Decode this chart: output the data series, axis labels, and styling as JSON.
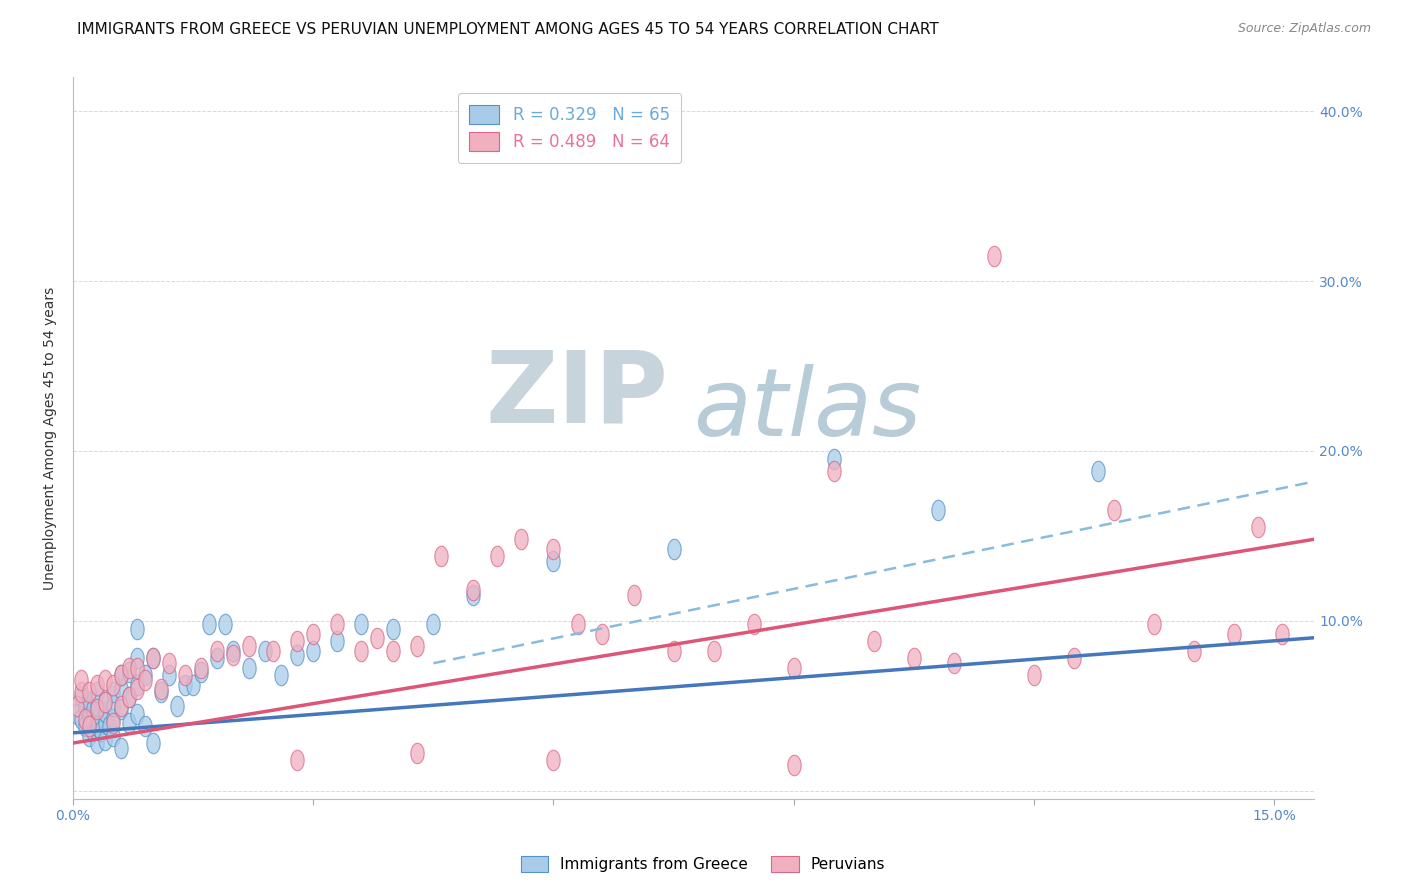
{
  "title": "IMMIGRANTS FROM GREECE VS PERUVIAN UNEMPLOYMENT AMONG AGES 45 TO 54 YEARS CORRELATION CHART",
  "source": "Source: ZipAtlas.com",
  "ylabel": "Unemployment Among Ages 45 to 54 years",
  "xlim": [
    0.0,
    0.155
  ],
  "ylim": [
    -0.005,
    0.42
  ],
  "xticks": [
    0.0,
    0.03,
    0.06,
    0.09,
    0.12,
    0.15
  ],
  "yticks": [
    0.0,
    0.1,
    0.2,
    0.3,
    0.4
  ],
  "right_ytick_labels": [
    "",
    "10.0%",
    "20.0%",
    "30.0%",
    "40.0%"
  ],
  "legend_entries": [
    {
      "label": "R = 0.329   N = 65",
      "color": "#6aabdb"
    },
    {
      "label": "R = 0.489   N = 64",
      "color": "#e8739a"
    }
  ],
  "blue_scatter_x": [
    0.0005,
    0.001,
    0.001,
    0.0015,
    0.0015,
    0.002,
    0.002,
    0.002,
    0.0025,
    0.0025,
    0.003,
    0.003,
    0.003,
    0.003,
    0.003,
    0.0035,
    0.004,
    0.004,
    0.004,
    0.004,
    0.0045,
    0.005,
    0.005,
    0.005,
    0.005,
    0.006,
    0.006,
    0.006,
    0.006,
    0.007,
    0.007,
    0.007,
    0.008,
    0.008,
    0.008,
    0.008,
    0.009,
    0.009,
    0.01,
    0.01,
    0.011,
    0.012,
    0.013,
    0.014,
    0.015,
    0.016,
    0.017,
    0.018,
    0.019,
    0.02,
    0.022,
    0.024,
    0.026,
    0.028,
    0.03,
    0.033,
    0.036,
    0.04,
    0.045,
    0.05,
    0.06,
    0.075,
    0.095,
    0.108,
    0.128
  ],
  "blue_scatter_y": [
    0.045,
    0.042,
    0.055,
    0.038,
    0.05,
    0.032,
    0.044,
    0.052,
    0.035,
    0.048,
    0.028,
    0.038,
    0.042,
    0.05,
    0.058,
    0.035,
    0.03,
    0.04,
    0.046,
    0.052,
    0.038,
    0.032,
    0.042,
    0.05,
    0.058,
    0.025,
    0.048,
    0.06,
    0.068,
    0.04,
    0.055,
    0.07,
    0.045,
    0.062,
    0.078,
    0.095,
    0.038,
    0.068,
    0.028,
    0.078,
    0.058,
    0.068,
    0.05,
    0.062,
    0.062,
    0.07,
    0.098,
    0.078,
    0.098,
    0.082,
    0.072,
    0.082,
    0.068,
    0.08,
    0.082,
    0.088,
    0.098,
    0.095,
    0.098,
    0.115,
    0.135,
    0.142,
    0.195,
    0.165,
    0.188
  ],
  "pink_scatter_x": [
    0.0005,
    0.001,
    0.001,
    0.0015,
    0.002,
    0.002,
    0.003,
    0.003,
    0.004,
    0.004,
    0.005,
    0.005,
    0.006,
    0.006,
    0.007,
    0.007,
    0.008,
    0.008,
    0.009,
    0.01,
    0.011,
    0.012,
    0.014,
    0.016,
    0.018,
    0.02,
    0.022,
    0.025,
    0.028,
    0.03,
    0.033,
    0.036,
    0.038,
    0.04,
    0.043,
    0.046,
    0.05,
    0.053,
    0.056,
    0.06,
    0.063,
    0.066,
    0.07,
    0.075,
    0.08,
    0.085,
    0.09,
    0.095,
    0.1,
    0.105,
    0.11,
    0.115,
    0.12,
    0.125,
    0.13,
    0.135,
    0.14,
    0.145,
    0.148,
    0.151,
    0.028,
    0.043,
    0.06,
    0.09
  ],
  "pink_scatter_y": [
    0.05,
    0.058,
    0.065,
    0.042,
    0.038,
    0.058,
    0.048,
    0.062,
    0.052,
    0.065,
    0.04,
    0.062,
    0.05,
    0.068,
    0.055,
    0.072,
    0.06,
    0.072,
    0.065,
    0.078,
    0.06,
    0.075,
    0.068,
    0.072,
    0.082,
    0.08,
    0.085,
    0.082,
    0.088,
    0.092,
    0.098,
    0.082,
    0.09,
    0.082,
    0.085,
    0.138,
    0.118,
    0.138,
    0.148,
    0.142,
    0.098,
    0.092,
    0.115,
    0.082,
    0.082,
    0.098,
    0.072,
    0.188,
    0.088,
    0.078,
    0.075,
    0.315,
    0.068,
    0.078,
    0.165,
    0.098,
    0.082,
    0.092,
    0.155,
    0.092,
    0.018,
    0.022,
    0.018,
    0.015
  ],
  "blue_line": [
    [
      0.0,
      0.155
    ],
    [
      0.034,
      0.09
    ]
  ],
  "blue_dash_line": [
    [
      0.045,
      0.155
    ],
    [
      0.075,
      0.182
    ]
  ],
  "pink_line": [
    [
      0.0,
      0.155
    ],
    [
      0.028,
      0.148
    ]
  ],
  "scatter_color_blue": "#a8cce8",
  "scatter_edge_blue": "#5590c8",
  "scatter_color_pink": "#f0b0c0",
  "scatter_edge_pink": "#d86888",
  "line_color_blue": "#4477bb",
  "line_color_blue_dash": "#88bbdd",
  "line_color_pink": "#dd5577",
  "watermark_zip_color": "#c8d4dc",
  "watermark_atlas_color": "#b8ccd8",
  "title_fontsize": 11,
  "axis_label_fontsize": 10,
  "tick_fontsize": 10,
  "source_fontsize": 9,
  "right_ytick_color": "#5588cc",
  "bottom_legend_labels": [
    "Immigrants from Greece",
    "Peruvians"
  ]
}
